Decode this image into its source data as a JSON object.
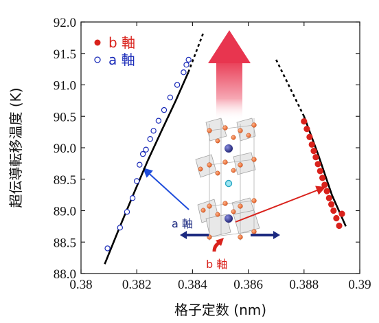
{
  "chart_data": {
    "type": "scatter",
    "xlabel": "格子定数 (nm)",
    "ylabel": "超伝導転移温度 (K)",
    "xlim": [
      0.38,
      0.39
    ],
    "ylim": [
      88.0,
      92.0
    ],
    "x_ticks": [
      "0.38",
      "0.382",
      "0.384",
      "0.386",
      "0.388",
      "0.39"
    ],
    "y_ticks": [
      "88.0",
      "88.5",
      "89.0",
      "89.5",
      "90.0",
      "90.5",
      "91.0",
      "91.5",
      "92.0"
    ],
    "grid": false,
    "legend_position": "top-left",
    "series": [
      {
        "name": "b 軸",
        "marker": "filled-circle",
        "color": "#d9221c",
        "x": [
          0.388,
          0.3881,
          0.3882,
          0.38828,
          0.38835,
          0.38842,
          0.3885,
          0.38858,
          0.38866,
          0.38874,
          0.38882,
          0.3889,
          0.38898,
          0.38906,
          0.38916,
          0.38926,
          0.38936
        ],
        "y": [
          90.42,
          90.3,
          90.17,
          90.05,
          89.95,
          89.85,
          89.74,
          89.63,
          89.52,
          89.41,
          89.31,
          89.2,
          89.1,
          89.0,
          88.88,
          88.76,
          88.95
        ]
      },
      {
        "name": "a 軸",
        "marker": "open-circle",
        "color": "#1a2bb8",
        "x": [
          0.38095,
          0.3814,
          0.38165,
          0.38185,
          0.382,
          0.3821,
          0.38222,
          0.38233,
          0.38248,
          0.3826,
          0.38278,
          0.38298,
          0.3832,
          0.38345,
          0.38368,
          0.38378,
          0.38386
        ],
        "y": [
          88.4,
          88.73,
          88.98,
          89.2,
          89.47,
          89.73,
          89.9,
          89.97,
          90.14,
          90.27,
          90.43,
          90.6,
          90.8,
          91.0,
          91.2,
          91.32,
          91.4
        ]
      }
    ],
    "trend_lines": [
      {
        "series": "a 軸",
        "solid": [
          [
            0.38085,
            88.15
          ],
          [
            0.3814,
            88.75
          ],
          [
            0.3819,
            89.28
          ],
          [
            0.3824,
            89.8
          ],
          [
            0.3829,
            90.28
          ],
          [
            0.3834,
            90.75
          ],
          [
            0.38385,
            91.2
          ]
        ],
        "dashed": [
          [
            0.38385,
            91.2
          ],
          [
            0.38415,
            91.55
          ],
          [
            0.3844,
            91.84
          ]
        ]
      },
      {
        "series": "b 軸",
        "solid": [
          [
            0.388,
            90.5
          ],
          [
            0.3885,
            89.9
          ],
          [
            0.389,
            89.25
          ],
          [
            0.3895,
            88.75
          ]
        ],
        "dashed": [
          [
            0.387,
            91.4
          ],
          [
            0.3875,
            90.95
          ],
          [
            0.388,
            90.5
          ]
        ]
      }
    ],
    "annotations": {
      "a_axis_label": "a 軸",
      "b_axis_label": "b 軸"
    }
  },
  "legend": {
    "b_label": "b 軸",
    "a_label": "a 軸"
  }
}
